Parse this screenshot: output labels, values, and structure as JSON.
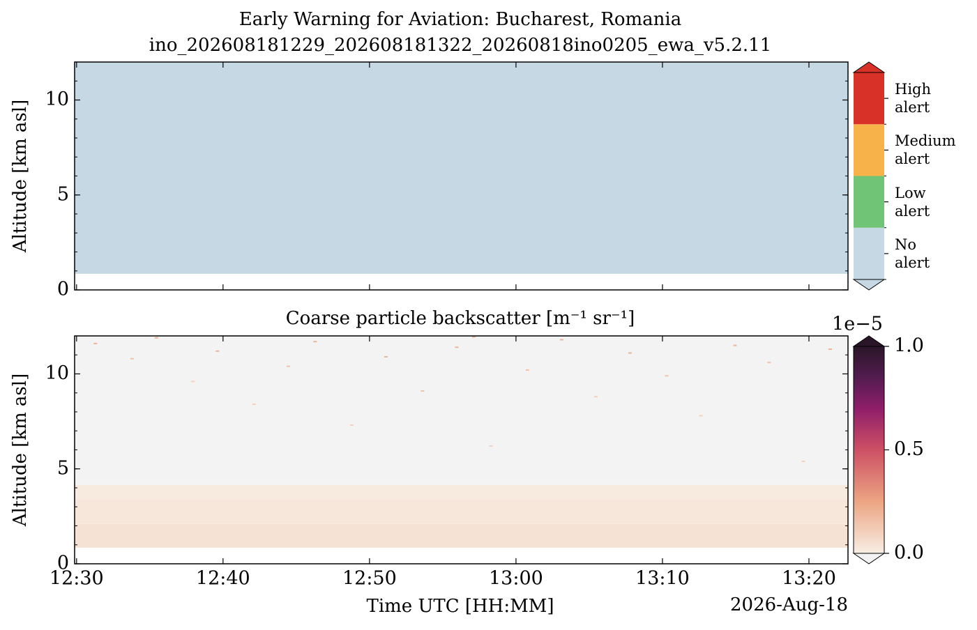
{
  "chart_data": [
    {
      "type": "heatmap",
      "title": "Early Warning for Aviation: Bucharest, Romania",
      "subtitle": "ino_202608181229_202608181322_20260818ino0205_ewa_v5.2.11",
      "ylabel": "Altitude [km asl]",
      "ylim": [
        0,
        12
      ],
      "yticks": [
        0,
        5,
        10
      ],
      "sharex": true,
      "cells": [
        {
          "x": [
            "12:29:52",
            "13:22:40"
          ],
          "y": [
            0.85,
            12
          ],
          "value": 0
        }
      ],
      "colorbar": {
        "type": "categorical",
        "categories": [
          "No\nalert",
          "Low\nalert",
          "Medium\nalert",
          "High\nalert"
        ],
        "colors": [
          "#c5d8e3",
          "#70c475",
          "#f7b24a",
          "#d83127"
        ],
        "extend": "both"
      }
    },
    {
      "type": "heatmap",
      "title": "Coarse particle backscatter [m⁻¹ sr⁻¹]",
      "xlabel": "Time UTC [HH:MM]",
      "date_label": "2026-Aug-18",
      "ylabel": "Altitude [km asl]",
      "xlim": [
        "12:29:52",
        "13:22:40"
      ],
      "xticks": [
        "12:30",
        "12:40",
        "12:50",
        "13:00",
        "13:10",
        "13:20"
      ],
      "ylim": [
        0,
        12
      ],
      "yticks": [
        0,
        5,
        10
      ],
      "cells": [
        {
          "x": [
            "12:29:52",
            "13:22:40"
          ],
          "y": [
            0.85,
            2.1
          ],
          "value": 4e-07
        },
        {
          "x": [
            "12:29:52",
            "13:22:40"
          ],
          "y": [
            2.1,
            3.4
          ],
          "value": 2.5e-07
        },
        {
          "x": [
            "12:29:52",
            "13:22:40"
          ],
          "y": [
            3.4,
            4.15
          ],
          "value": 1.2e-07
        },
        {
          "x": [
            "12:29:52",
            "13:22:40"
          ],
          "y": [
            4.15,
            12
          ],
          "value": -1e-07
        }
      ],
      "speckles": [
        {
          "x": "12:31:10",
          "y": 11.6,
          "value": 2e-06
        },
        {
          "x": "12:33:40",
          "y": 10.8,
          "value": 1.5e-06
        },
        {
          "x": "12:35:20",
          "y": 11.9,
          "value": 2e-06
        },
        {
          "x": "12:37:50",
          "y": 9.6,
          "value": 1e-06
        },
        {
          "x": "12:39:30",
          "y": 11.2,
          "value": 2e-06
        },
        {
          "x": "12:42:00",
          "y": 8.4,
          "value": 1e-06
        },
        {
          "x": "12:44:20",
          "y": 10.4,
          "value": 1.5e-06
        },
        {
          "x": "12:46:10",
          "y": 11.7,
          "value": 2e-06
        },
        {
          "x": "12:48:40",
          "y": 7.3,
          "value": 1e-06
        },
        {
          "x": "12:51:00",
          "y": 10.9,
          "value": 2e-06
        },
        {
          "x": "12:53:30",
          "y": 9.1,
          "value": 1.5e-06
        },
        {
          "x": "12:55:50",
          "y": 11.4,
          "value": 2e-06
        },
        {
          "x": "12:58:10",
          "y": 6.2,
          "value": 1e-06
        },
        {
          "x": "13:00:40",
          "y": 10.2,
          "value": 1.5e-06
        },
        {
          "x": "13:03:00",
          "y": 11.8,
          "value": 2e-06
        },
        {
          "x": "13:05:20",
          "y": 8.8,
          "value": 1e-06
        },
        {
          "x": "13:07:40",
          "y": 11.1,
          "value": 2e-06
        },
        {
          "x": "13:10:10",
          "y": 9.9,
          "value": 1.5e-06
        },
        {
          "x": "13:12:30",
          "y": 7.8,
          "value": 1e-06
        },
        {
          "x": "13:14:50",
          "y": 11.5,
          "value": 2e-06
        },
        {
          "x": "13:17:10",
          "y": 10.6,
          "value": 1.5e-06
        },
        {
          "x": "13:19:30",
          "y": 5.4,
          "value": 1e-06
        },
        {
          "x": "13:21:20",
          "y": 11.3,
          "value": 2e-06
        },
        {
          "x": "12:57:00",
          "y": 11.95,
          "value": 2e-06
        }
      ],
      "colorbar": {
        "type": "continuous",
        "clim": [
          0,
          1e-05
        ],
        "ticks": [
          {
            "value": 0,
            "label": "0.0"
          },
          {
            "value": 5e-06,
            "label": "0.5"
          },
          {
            "value": 1e-05,
            "label": "1.0"
          }
        ],
        "offset_label": "1e−5",
        "colormap": [
          {
            "value": 0,
            "color": "#f8eee4"
          },
          {
            "value": 2.5e-06,
            "color": "#eca583"
          },
          {
            "value": 5e-06,
            "color": "#cd5064"
          },
          {
            "value": 7e-06,
            "color": "#8f1e6a"
          },
          {
            "value": 8.5e-06,
            "color": "#531c4f"
          },
          {
            "value": 1e-05,
            "color": "#2a1628"
          }
        ],
        "under_color": "#f3f3f3",
        "over_color": "#2a1628",
        "extend": "both"
      }
    }
  ]
}
